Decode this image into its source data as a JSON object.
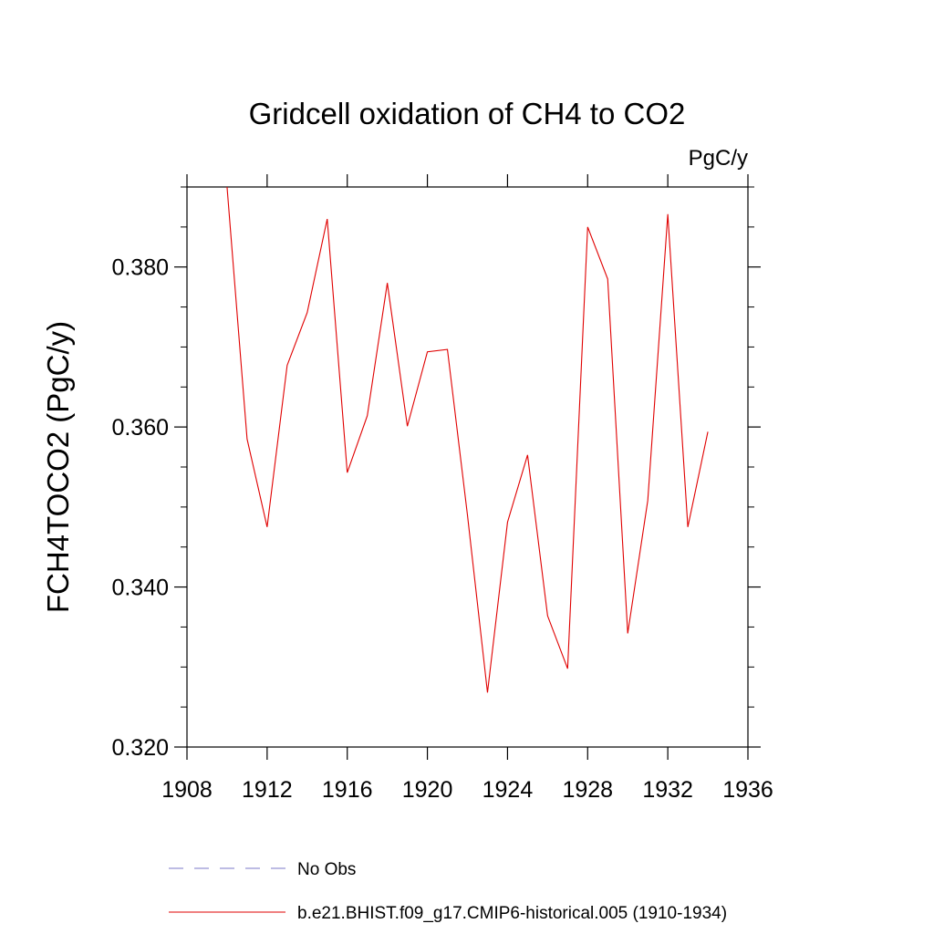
{
  "chart_data": {
    "type": "line",
    "title": "Gridcell oxidation of CH4 to CO2",
    "units": "PgC/y",
    "ylabel": "FCH4TOCO2  (PgC/y)",
    "xlabel": "",
    "xlim": [
      1908,
      1936
    ],
    "ylim": [
      0.32,
      0.39
    ],
    "xticks": [
      1908,
      1912,
      1916,
      1920,
      1924,
      1928,
      1932,
      1936
    ],
    "xtick_labels": [
      "1908",
      "1912",
      "1916",
      "1920",
      "1924",
      "1928",
      "1932",
      "1936"
    ],
    "yticks": [
      0.32,
      0.34,
      0.36,
      0.38
    ],
    "ytick_labels": [
      "0.320",
      "0.340",
      "0.360",
      "0.380"
    ],
    "series": [
      {
        "name": "b.e21.BHIST.f09_g17.CMIP6-historical.005 (1910-1934)",
        "color": "#e00000",
        "style": "solid",
        "x": [
          1910,
          1911,
          1912,
          1913,
          1914,
          1915,
          1916,
          1917,
          1918,
          1919,
          1920,
          1921,
          1922,
          1923,
          1924,
          1925,
          1926,
          1927,
          1928,
          1929,
          1930,
          1931,
          1932,
          1933,
          1934
        ],
        "y": [
          0.39,
          0.3585,
          0.3475,
          0.3677,
          0.3743,
          0.386,
          0.3543,
          0.3614,
          0.378,
          0.3601,
          0.3694,
          0.3697,
          0.349,
          0.3268,
          0.3481,
          0.3565,
          0.3364,
          0.3298,
          0.385,
          0.3785,
          0.3342,
          0.3508,
          0.3866,
          0.3475,
          0.3594
        ]
      }
    ],
    "legend": {
      "placement": "bottom",
      "entries": [
        {
          "label": "No Obs",
          "color": "#7b78c8",
          "style": "dashed"
        },
        {
          "label": "b.e21.BHIST.f09_g17.CMIP6-historical.005 (1910-1934)",
          "color": "#e00000",
          "style": "solid"
        }
      ]
    }
  }
}
